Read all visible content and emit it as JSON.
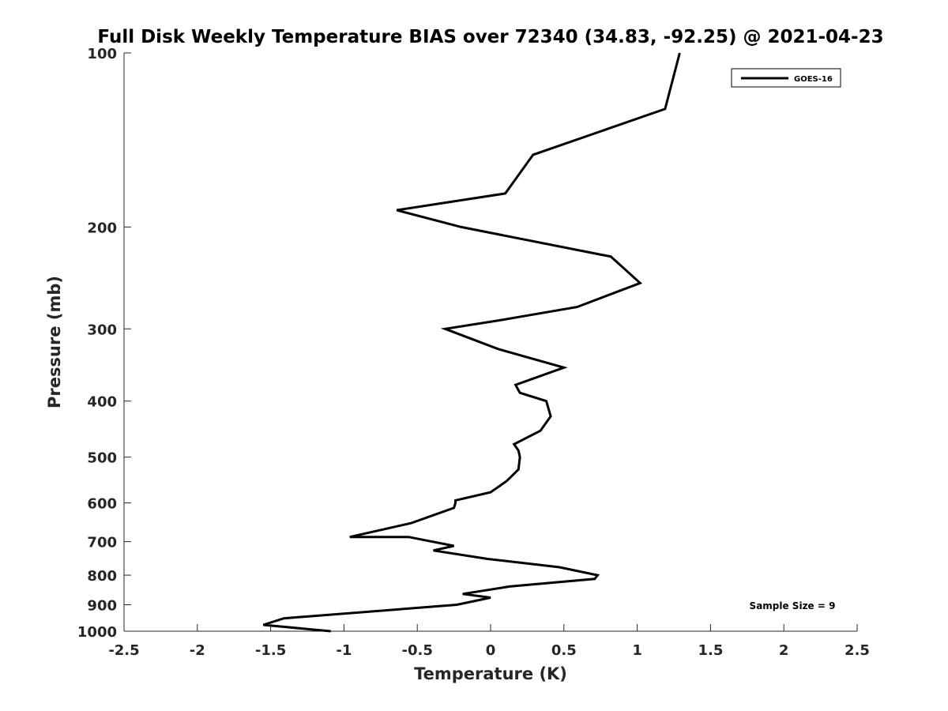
{
  "chart_data": {
    "type": "line",
    "title": "Full Disk Weekly Temperature BIAS over 72340 (34.83, -92.25) @ 2021-04-23",
    "xlabel": "Temperature (K)",
    "ylabel": "Pressure (mb)",
    "xlim": [
      -2.5,
      2.5
    ],
    "ylim": [
      1000,
      100
    ],
    "yscale": "log",
    "y_reversed": true,
    "grid": false,
    "x_ticks": [
      -2.5,
      -2,
      -1.5,
      -1,
      -0.5,
      0,
      0.5,
      1,
      1.5,
      2,
      2.5
    ],
    "x_tick_labels": [
      "-2.5",
      "-2",
      "-1.5",
      "-1",
      "-0.5",
      "0",
      "0.5",
      "1",
      "1.5",
      "2",
      "2.5"
    ],
    "y_ticks": [
      100,
      200,
      300,
      400,
      500,
      600,
      700,
      800,
      900,
      1000
    ],
    "y_tick_labels": [
      "100",
      "200",
      "300",
      "400",
      "500",
      "600",
      "700",
      "800",
      "900",
      "1000"
    ],
    "legend": {
      "position": "top-right",
      "entries": [
        "GOES-16"
      ]
    },
    "annotation": "Sample Size = 9",
    "series": [
      {
        "name": "GOES-16",
        "color": "#000000",
        "x": [
          1.29,
          1.19,
          0.29,
          0.1,
          -0.64,
          -0.2,
          0.82,
          1.02,
          0.59,
          0.06,
          -0.31,
          0.05,
          0.5,
          0.17,
          0.2,
          0.38,
          0.41,
          0.34,
          0.16,
          0.19,
          0.2,
          0.19,
          0.11,
          0.0,
          -0.24,
          -0.24,
          -0.25,
          -0.54,
          -0.96,
          -0.56,
          -0.25,
          -0.39,
          -0.02,
          0.47,
          0.73,
          0.71,
          0.13,
          -0.19,
          0.0,
          -0.23,
          -1.41,
          -1.55,
          -1.09
        ],
        "y": [
          100,
          125,
          150,
          175,
          187,
          200,
          225,
          250,
          275,
          290,
          300,
          325,
          350,
          375,
          387,
          400,
          425,
          450,
          475,
          487,
          500,
          525,
          550,
          575,
          594,
          600,
          612,
          650,
          687,
          687,
          712,
          725,
          750,
          775,
          800,
          812,
          837,
          862,
          875,
          900,
          950,
          975,
          1000
        ]
      }
    ]
  }
}
